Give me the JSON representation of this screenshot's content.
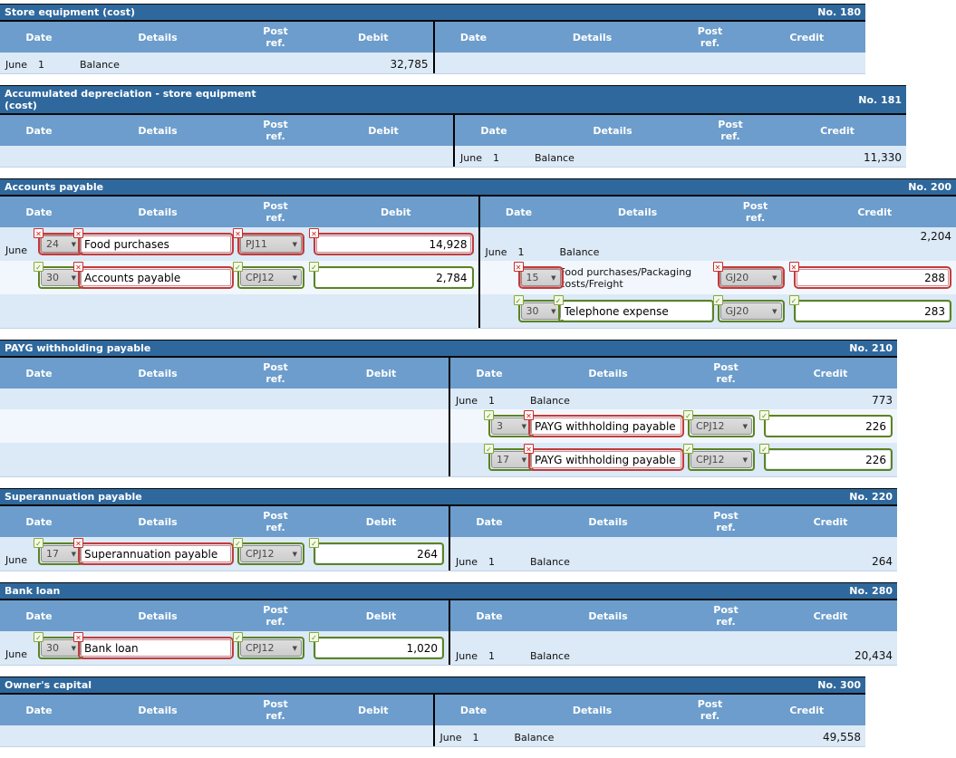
{
  "column_headers": {
    "date": "Date",
    "details": "Details",
    "post_ref": "Post ref.",
    "debit": "Debit",
    "credit": "Credit"
  },
  "icons": {
    "dropdown_arrow": "▼",
    "wrong_mark": "✕",
    "right_mark": "✓"
  },
  "colors": {
    "title_bar": "#2f689c",
    "header_row": "#6c9dcc",
    "row_light": "#dce9f6",
    "row_alt": "#f2f7fd",
    "wrong": "#c23b3b",
    "right": "#5d831f"
  },
  "accounts": [
    {
      "name": "Store equipment (cost)",
      "number": "No. 180",
      "rows": [
        {
          "debit": {
            "month": "June",
            "day": "1",
            "details": "Balance",
            "amount": "32,785"
          },
          "credit": {}
        }
      ]
    },
    {
      "name": "Accumulated depreciation - store equipment (cost)",
      "number": "No. 181",
      "rows": [
        {
          "debit": {},
          "credit": {
            "month": "June",
            "day": "1",
            "details": "Balance",
            "amount": "11,330"
          }
        }
      ]
    },
    {
      "name": "Accounts payable",
      "number": "No. 200",
      "rows": [
        {
          "debit": {
            "month": "June",
            "date_select": {
              "value": "24",
              "status": "wrong"
            },
            "details_input": {
              "value": "Food purchases",
              "status": "wrong"
            },
            "post_select": {
              "value": "PJ11",
              "status": "wrong"
            },
            "amount_input": {
              "value": "14,928",
              "status": "wrong"
            }
          },
          "credit": {
            "month": "June",
            "day": "1",
            "details": "Balance",
            "amount": "2,204",
            "amount_top": true
          }
        },
        {
          "debit": {
            "date_select": {
              "value": "30",
              "status": "right"
            },
            "details_input": {
              "value": "Accounts payable",
              "status": "wrong"
            },
            "post_select": {
              "value": "CPJ12",
              "status": "right"
            },
            "amount_input": {
              "value": "2,784",
              "status": "right"
            }
          },
          "credit": {
            "date_select": {
              "value": "15",
              "status": "wrong"
            },
            "details": "Food purchases/Packaging costs/Freight",
            "post_select": {
              "value": "GJ20",
              "status": "wrong"
            },
            "amount_input": {
              "value": "288",
              "status": "wrong"
            }
          }
        },
        {
          "debit": {},
          "credit": {
            "date_select": {
              "value": "30",
              "status": "right"
            },
            "details_input": {
              "value": "Telephone expense",
              "status": "right"
            },
            "post_select": {
              "value": "GJ20",
              "status": "right"
            },
            "amount_input": {
              "value": "283",
              "status": "right"
            }
          }
        }
      ]
    },
    {
      "name": "PAYG withholding payable",
      "number": "No. 210",
      "rows": [
        {
          "debit": {},
          "credit": {
            "month": "June",
            "day": "1",
            "details": "Balance",
            "amount": "773"
          }
        },
        {
          "debit": {},
          "credit": {
            "date_select": {
              "value": "3",
              "status": "right"
            },
            "details_input": {
              "value": "PAYG withholding payable",
              "status": "wrong"
            },
            "post_select": {
              "value": "CPJ12",
              "status": "right"
            },
            "amount_input": {
              "value": "226",
              "status": "right"
            }
          }
        },
        {
          "debit": {},
          "credit": {
            "date_select": {
              "value": "17",
              "status": "right"
            },
            "details_input": {
              "value": "PAYG withholding payable",
              "status": "wrong"
            },
            "post_select": {
              "value": "CPJ12",
              "status": "right"
            },
            "amount_input": {
              "value": "226",
              "status": "right"
            }
          }
        }
      ]
    },
    {
      "name": "Superannuation payable",
      "number": "No. 220",
      "rows": [
        {
          "debit": {
            "month": "June",
            "date_select": {
              "value": "17",
              "status": "right"
            },
            "details_input": {
              "value": "Superannuation payable",
              "status": "wrong"
            },
            "post_select": {
              "value": "CPJ12",
              "status": "right"
            },
            "amount_input": {
              "value": "264",
              "status": "right"
            }
          },
          "credit": {
            "month": "June",
            "day": "1",
            "details": "Balance",
            "amount": "264"
          }
        }
      ]
    },
    {
      "name": "Bank loan",
      "number": "No. 280",
      "rows": [
        {
          "debit": {
            "month": "June",
            "date_select": {
              "value": "30",
              "status": "right"
            },
            "details_input": {
              "value": "Bank loan",
              "status": "wrong"
            },
            "post_select": {
              "value": "CPJ12",
              "status": "right"
            },
            "amount_input": {
              "value": "1,020",
              "status": "right"
            }
          },
          "credit": {
            "month": "June",
            "day": "1",
            "details": "Balance",
            "amount": "20,434"
          }
        }
      ]
    },
    {
      "name": "Owner's capital",
      "number": "No. 300",
      "rows": [
        {
          "debit": {},
          "credit": {
            "month": "June",
            "day": "1",
            "details": "Balance",
            "amount": "49,558"
          }
        }
      ]
    }
  ]
}
